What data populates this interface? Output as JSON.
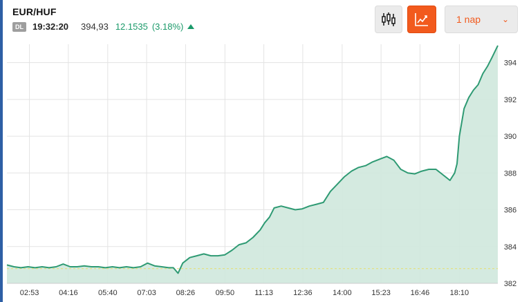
{
  "header": {
    "pair": "EUR/HUF",
    "badge": "DL",
    "time": "19:32:20",
    "price": "394,93",
    "change": "12.1535",
    "change_pct": "(3.18%)",
    "direction_icon": "triangle-up-icon"
  },
  "toolbar": {
    "candle_icon": "candlestick-icon",
    "line_icon": "line-chart-icon",
    "range_label": "1 nap",
    "range_icon": "chevron-down-icon"
  },
  "colors": {
    "line": "#2e9a73",
    "fill": "#cfe8dd",
    "accent": "#f25a1d",
    "positive": "#1b9a6a",
    "reference": "#e5e07a"
  },
  "chart_data": {
    "type": "area",
    "title": "",
    "xlabel": "",
    "ylabel": "",
    "x_ticks": [
      "02:53",
      "04:16",
      "05:40",
      "07:03",
      "08:26",
      "09:50",
      "11:13",
      "12:36",
      "14:00",
      "15:23",
      "16:46",
      "18:10"
    ],
    "y_ticks": [
      382,
      384,
      386,
      388,
      390,
      392,
      394
    ],
    "ylim": [
      382,
      395
    ],
    "x_range": [
      "02:05",
      "19:32"
    ],
    "y_axis_side": "right",
    "grid": true,
    "reference_line": 382.8,
    "series": [
      {
        "x": [
          "02:05",
          "02:20",
          "02:35",
          "02:50",
          "03:05",
          "03:20",
          "03:35",
          "03:50",
          "04:05",
          "04:20",
          "04:35",
          "04:50",
          "05:05",
          "05:20",
          "05:35",
          "05:50",
          "06:05",
          "06:20",
          "06:35",
          "06:50",
          "07:05",
          "07:20",
          "07:35",
          "07:50",
          "08:00",
          "08:10",
          "08:20",
          "08:35",
          "08:50",
          "09:05",
          "09:20",
          "09:35",
          "09:50",
          "10:05",
          "10:20",
          "10:35",
          "10:50",
          "11:05",
          "11:15",
          "11:25",
          "11:35",
          "11:50",
          "12:05",
          "12:20",
          "12:35",
          "12:50",
          "13:05",
          "13:20",
          "13:35",
          "13:50",
          "14:05",
          "14:20",
          "14:35",
          "14:50",
          "15:05",
          "15:20",
          "15:35",
          "15:50",
          "16:05",
          "16:20",
          "16:35",
          "16:50",
          "17:05",
          "17:20",
          "17:35",
          "17:50",
          "18:00",
          "18:05",
          "18:10",
          "18:20",
          "18:30",
          "18:40",
          "18:50",
          "19:00",
          "19:10",
          "19:20",
          "19:32"
        ],
        "values": [
          383.0,
          382.9,
          382.85,
          382.9,
          382.85,
          382.9,
          382.85,
          382.9,
          383.05,
          382.9,
          382.9,
          382.95,
          382.9,
          382.9,
          382.85,
          382.9,
          382.85,
          382.9,
          382.85,
          382.9,
          383.1,
          382.95,
          382.9,
          382.85,
          382.85,
          382.55,
          383.1,
          383.4,
          383.5,
          383.6,
          383.5,
          383.5,
          383.55,
          383.8,
          384.1,
          384.2,
          384.5,
          384.9,
          385.3,
          385.6,
          386.1,
          386.2,
          386.1,
          386.0,
          386.05,
          386.2,
          386.3,
          386.4,
          387.0,
          387.4,
          387.8,
          388.1,
          388.3,
          388.4,
          388.6,
          388.75,
          388.9,
          388.7,
          388.2,
          388.0,
          387.95,
          388.1,
          388.2,
          388.2,
          387.9,
          387.6,
          388.0,
          388.5,
          390.0,
          391.5,
          392.1,
          392.5,
          392.8,
          393.4,
          393.8,
          394.3,
          394.93
        ]
      }
    ]
  }
}
